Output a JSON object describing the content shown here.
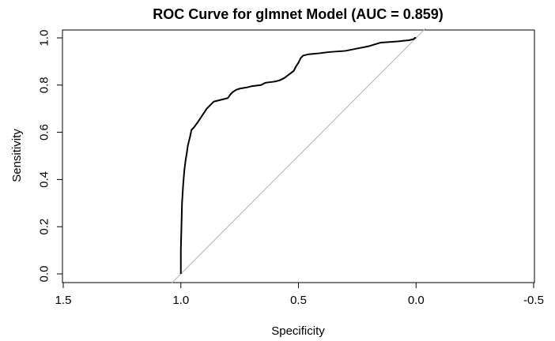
{
  "chart_data": {
    "type": "line",
    "title": "ROC Curve for glmnet Model (AUC = 0.859)",
    "xlabel": "Specificity",
    "ylabel": "Sensitivity",
    "xlim": [
      1.5,
      -0.5
    ],
    "ylim": [
      0.0,
      1.0
    ],
    "x_ticks": [
      "1.5",
      "1.0",
      "0.5",
      "0.0",
      "-0.5"
    ],
    "y_ticks": [
      "0.0",
      "0.2",
      "0.4",
      "0.6",
      "0.8",
      "1.0"
    ],
    "grid": false,
    "series": [
      {
        "color": "#000000",
        "points": [
          [
            1.0,
            0.0
          ],
          [
            1.0,
            0.1
          ],
          [
            0.995,
            0.3
          ],
          [
            0.99,
            0.38
          ],
          [
            0.985,
            0.44
          ],
          [
            0.98,
            0.48
          ],
          [
            0.975,
            0.51
          ],
          [
            0.97,
            0.545
          ],
          [
            0.965,
            0.565
          ],
          [
            0.96,
            0.585
          ],
          [
            0.955,
            0.61
          ],
          [
            0.945,
            0.62
          ],
          [
            0.93,
            0.64
          ],
          [
            0.92,
            0.655
          ],
          [
            0.91,
            0.67
          ],
          [
            0.9,
            0.685
          ],
          [
            0.89,
            0.7
          ],
          [
            0.88,
            0.71
          ],
          [
            0.87,
            0.72
          ],
          [
            0.86,
            0.73
          ],
          [
            0.84,
            0.735
          ],
          [
            0.8,
            0.745
          ],
          [
            0.79,
            0.76
          ],
          [
            0.78,
            0.77
          ],
          [
            0.765,
            0.78
          ],
          [
            0.75,
            0.785
          ],
          [
            0.72,
            0.79
          ],
          [
            0.7,
            0.795
          ],
          [
            0.66,
            0.8
          ],
          [
            0.64,
            0.81
          ],
          [
            0.6,
            0.815
          ],
          [
            0.58,
            0.82
          ],
          [
            0.56,
            0.83
          ],
          [
            0.54,
            0.845
          ],
          [
            0.52,
            0.86
          ],
          [
            0.51,
            0.88
          ],
          [
            0.5,
            0.895
          ],
          [
            0.49,
            0.915
          ],
          [
            0.48,
            0.925
          ],
          [
            0.46,
            0.93
          ],
          [
            0.41,
            0.935
          ],
          [
            0.37,
            0.94
          ],
          [
            0.3,
            0.945
          ],
          [
            0.25,
            0.955
          ],
          [
            0.2,
            0.965
          ],
          [
            0.15,
            0.98
          ],
          [
            0.08,
            0.985
          ],
          [
            0.03,
            0.99
          ],
          [
            0.01,
            0.995
          ],
          [
            0.005,
            1.0
          ],
          [
            0.0,
            1.0
          ]
        ]
      },
      {
        "color": "#b3b3b3",
        "points": [
          [
            1.04,
            -0.04
          ],
          [
            -0.04,
            1.04
          ]
        ]
      }
    ]
  }
}
